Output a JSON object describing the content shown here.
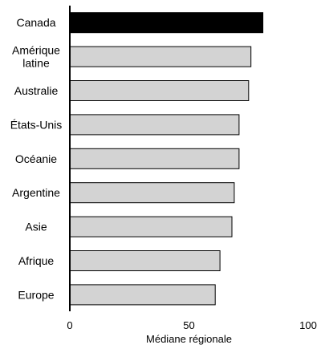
{
  "chart_data": {
    "type": "bar",
    "orientation": "horizontal",
    "categories": [
      "Canada",
      "Amérique latine",
      "Australie",
      "États-Unis",
      "Océanie",
      "Argentine",
      "Asie",
      "Afrique",
      "Europe"
    ],
    "category_label_lines": [
      [
        "Canada"
      ],
      [
        "Amérique",
        "latine"
      ],
      [
        "Australie"
      ],
      [
        "États-Unis"
      ],
      [
        "Océanie"
      ],
      [
        "Argentine"
      ],
      [
        "Asie"
      ],
      [
        "Afrique"
      ],
      [
        "Europe"
      ]
    ],
    "values": [
      81,
      76,
      75,
      71,
      71,
      69,
      68,
      63,
      61
    ],
    "highlight_index": 0,
    "xlabel": "Médiane régionale",
    "ylabel": "",
    "title": "",
    "xlim": [
      0,
      100
    ],
    "xticks": [
      0,
      50,
      100
    ],
    "grid": false,
    "colors": {
      "bar_default": "#d3d3d3",
      "bar_highlight": "#000000",
      "bar_stroke": "#000000",
      "axis": "#000000"
    }
  }
}
